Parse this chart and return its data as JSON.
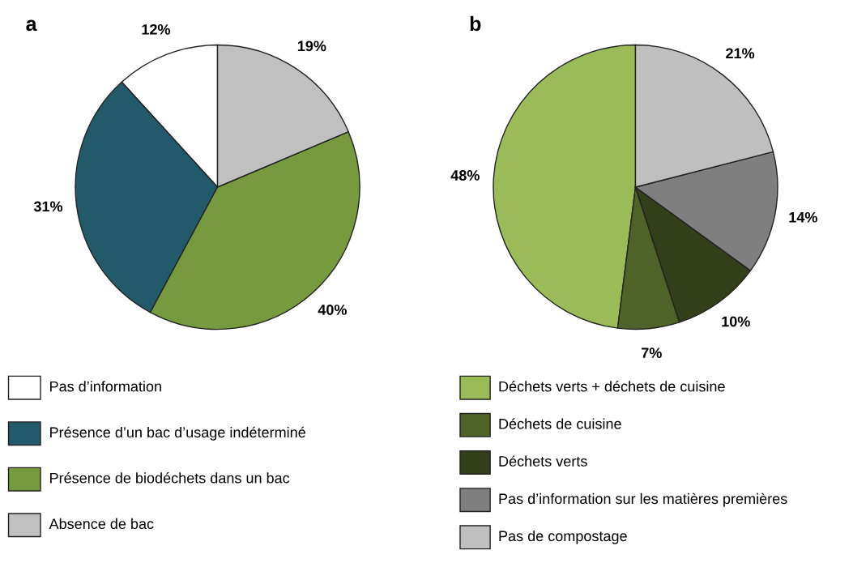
{
  "chart_data": [
    {
      "type": "pie",
      "title": "a",
      "categories": [
        "Pas d’information",
        "Présence d’un bac d’usage indéterminé",
        "Présence de biodéchets dans un bac",
        "Absence de bac"
      ],
      "values": [
        12,
        31,
        40,
        19
      ],
      "colors": [
        "#ffffff",
        "#235a6b",
        "#779a3e",
        "#c0c0c0"
      ],
      "value_labels": [
        "12%",
        "31%",
        "40%",
        "19%"
      ],
      "legend": "bottom"
    },
    {
      "type": "pie",
      "title": "b",
      "categories": [
        "Déchets verts + déchets de cuisine",
        "Déchets de cuisine",
        "Déchets verts",
        "Pas d’information sur les matières premières",
        "Pas de compostage"
      ],
      "values": [
        48,
        7,
        10,
        14,
        21
      ],
      "colors": [
        "#9bbb59",
        "#4f6228",
        "#333f1a",
        "#7f7f7f",
        "#bfbfbf"
      ],
      "value_labels": [
        "48%",
        "7%",
        "10%",
        "14%",
        "21%"
      ],
      "legend": "bottom"
    }
  ]
}
